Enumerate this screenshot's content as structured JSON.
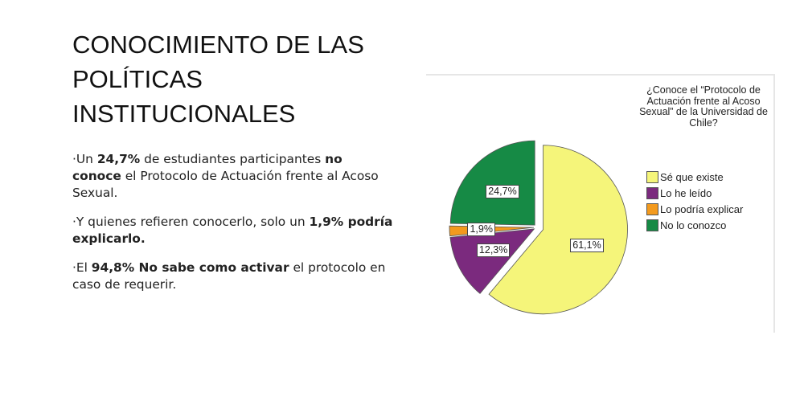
{
  "slide": {
    "title_lines": [
      "CONOCIMIENTO DE LAS",
      "POLÍTICAS",
      "INSTITUCIONALES"
    ],
    "bullets": [
      {
        "parts": [
          {
            "t": "·Un ",
            "b": false
          },
          {
            "t": "24,7%",
            "b": true
          },
          {
            "t": " de estudiantes participantes ",
            "b": false
          },
          {
            "t": "no conoce",
            "b": true
          },
          {
            "t": " el Protocolo de Actuación frente al Acoso Sexual.",
            "b": false
          }
        ]
      },
      {
        "parts": [
          {
            "t": "·Y quienes refieren conocerlo, solo un ",
            "b": false
          },
          {
            "t": "1,9% podría explicarlo.",
            "b": true
          }
        ]
      },
      {
        "parts": [
          {
            "t": "·El ",
            "b": false
          },
          {
            "t": "94,8% No sabe como activar",
            "b": true
          },
          {
            "t": " el protocolo en caso de requerir.",
            "b": false
          }
        ]
      }
    ]
  },
  "chart_data": {
    "type": "pie",
    "legend_title": "¿Conoce el “Protocolo de Actuación frente al Acoso Sexual” de la Universidad de Chile?",
    "legend_position": "right",
    "categories": [
      "Sé que existe",
      "Lo he leído",
      "Lo podría explicar",
      "No lo conozco"
    ],
    "values": [
      61.1,
      12.3,
      1.9,
      24.7
    ],
    "data_labels": [
      "61,1%",
      "12,3%",
      "1,9%",
      "24,7%"
    ],
    "colors": [
      "#f5f57a",
      "#7b2a7e",
      "#f39a1e",
      "#168a45"
    ],
    "exploded": "Sé que existe"
  }
}
